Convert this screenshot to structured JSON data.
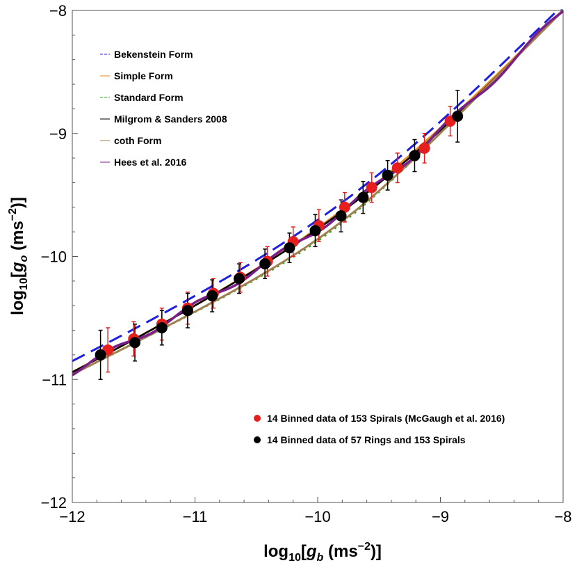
{
  "chart_data": {
    "type": "scatter",
    "xlabel": {
      "pre": "log",
      "sub1": "10",
      "mid": "[",
      "var": "g",
      "sub2": "b",
      "unit": " (ms",
      "exp": "−2",
      "post": ")]"
    },
    "ylabel": {
      "pre": "log",
      "sub1": "10",
      "mid": "[",
      "var": "g",
      "sub2": "o",
      "unit": " (ms",
      "exp": "−2",
      "post": ")]"
    },
    "xlim": [
      -12,
      -8
    ],
    "ylim": [
      -12,
      -8
    ],
    "x_ticks": [
      {
        "value": -12,
        "label": "−12"
      },
      {
        "value": -11,
        "label": "−11"
      },
      {
        "value": -10,
        "label": "−10"
      },
      {
        "value": -9,
        "label": "−9"
      },
      {
        "value": -8,
        "label": "−8"
      }
    ],
    "y_ticks": [
      {
        "value": -12,
        "label": "−12"
      },
      {
        "value": -11,
        "label": "−11"
      },
      {
        "value": -10,
        "label": "−10"
      },
      {
        "value": -9,
        "label": "−9"
      },
      {
        "value": -8,
        "label": "−8"
      }
    ],
    "grid": false,
    "curves": [
      {
        "name": "Bekenstein Form",
        "color": "#1f1fe0",
        "dash": "20,10",
        "width": 3,
        "model": "bekenstein"
      },
      {
        "name": "Simple Form",
        "color": "#e08a1a",
        "dash": "",
        "width": 3,
        "model": "simple"
      },
      {
        "name": "Standard Form",
        "color": "#22aa22",
        "dash": "3,6",
        "width": 3,
        "model": "standard"
      },
      {
        "name": "Milgrom & Sanders 2008",
        "color": "#000000",
        "dash": "",
        "width": 2.5,
        "model": "milgrom"
      },
      {
        "name": "coth Form",
        "color": "#a08050",
        "dash": "",
        "width": 3,
        "model": "coth"
      },
      {
        "name": "Hees et al. 2016",
        "color": "#7a1f8a",
        "dash": "",
        "width": 3.5,
        "model": "hees"
      }
    ],
    "series": [
      {
        "name": "14 Binned data of 153 Spirals (McGaugh et al. 2016)",
        "color": "#e61e1e",
        "points": [
          {
            "x": -11.71,
            "y": -10.76,
            "err": 0.18
          },
          {
            "x": -11.5,
            "y": -10.67,
            "err": 0.14
          },
          {
            "x": -11.27,
            "y": -10.55,
            "err": 0.13
          },
          {
            "x": -11.06,
            "y": -10.42,
            "err": 0.13
          },
          {
            "x": -10.85,
            "y": -10.3,
            "err": 0.12
          },
          {
            "x": -10.63,
            "y": -10.17,
            "err": 0.12
          },
          {
            "x": -10.41,
            "y": -10.04,
            "err": 0.12
          },
          {
            "x": -10.2,
            "y": -9.88,
            "err": 0.12
          },
          {
            "x": -9.99,
            "y": -9.75,
            "err": 0.13
          },
          {
            "x": -9.78,
            "y": -9.6,
            "err": 0.12
          },
          {
            "x": -9.56,
            "y": -9.44,
            "err": 0.12
          },
          {
            "x": -9.35,
            "y": -9.28,
            "err": 0.12
          },
          {
            "x": -9.13,
            "y": -9.12,
            "err": 0.12
          },
          {
            "x": -8.92,
            "y": -8.9,
            "err": 0.12
          }
        ]
      },
      {
        "name": "14 Binned data of 57 Rings and 153 Spirals",
        "color": "#000000",
        "points": [
          {
            "x": -11.77,
            "y": -10.8,
            "err": 0.2
          },
          {
            "x": -11.49,
            "y": -10.7,
            "err": 0.15
          },
          {
            "x": -11.27,
            "y": -10.58,
            "err": 0.14
          },
          {
            "x": -11.06,
            "y": -10.44,
            "err": 0.14
          },
          {
            "x": -10.86,
            "y": -10.32,
            "err": 0.13
          },
          {
            "x": -10.64,
            "y": -10.18,
            "err": 0.12
          },
          {
            "x": -10.43,
            "y": -10.06,
            "err": 0.12
          },
          {
            "x": -10.23,
            "y": -9.93,
            "err": 0.12
          },
          {
            "x": -10.02,
            "y": -9.79,
            "err": 0.13
          },
          {
            "x": -9.81,
            "y": -9.67,
            "err": 0.13
          },
          {
            "x": -9.63,
            "y": -9.52,
            "err": 0.13
          },
          {
            "x": -9.43,
            "y": -9.34,
            "err": 0.12
          },
          {
            "x": -9.21,
            "y": -9.18,
            "err": 0.13
          },
          {
            "x": -8.86,
            "y": -8.86,
            "err": 0.21
          }
        ]
      }
    ]
  }
}
